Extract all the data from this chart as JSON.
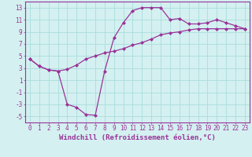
{
  "line1_x": [
    0,
    1,
    2,
    3,
    4,
    5,
    6,
    7,
    8,
    9,
    10,
    11,
    12,
    13,
    14,
    15,
    16,
    17,
    18,
    19,
    20,
    21,
    22,
    23
  ],
  "line1_y": [
    4.5,
    3.3,
    2.7,
    2.5,
    -3.0,
    -3.5,
    -4.7,
    -4.8,
    2.5,
    8.0,
    10.5,
    12.5,
    13.0,
    13.0,
    13.0,
    11.0,
    11.2,
    10.3,
    10.3,
    10.5,
    11.0,
    10.5,
    10.0,
    9.5
  ],
  "line2_x": [
    0,
    1,
    2,
    3,
    4,
    5,
    6,
    7,
    8,
    9,
    10,
    11,
    12,
    13,
    14,
    15,
    16,
    17,
    18,
    19,
    20,
    21,
    22,
    23
  ],
  "line2_y": [
    4.5,
    3.3,
    2.7,
    2.5,
    2.8,
    3.5,
    4.5,
    5.0,
    5.5,
    5.8,
    6.2,
    6.8,
    7.2,
    7.8,
    8.5,
    8.8,
    9.0,
    9.3,
    9.5,
    9.5,
    9.5,
    9.5,
    9.5,
    9.5
  ],
  "line_color": "#993399",
  "bg_color": "#d4f0f0",
  "grid_color": "#aadddd",
  "xlabel": "Windchill (Refroidissement éolien,°C)",
  "ylim": [
    -6,
    14
  ],
  "xlim": [
    -0.5,
    23.5
  ],
  "yticks": [
    13,
    11,
    9,
    7,
    5,
    3,
    1,
    -1,
    -3,
    -5
  ],
  "xticks": [
    0,
    1,
    2,
    3,
    4,
    5,
    6,
    7,
    8,
    9,
    10,
    11,
    12,
    13,
    14,
    15,
    16,
    17,
    18,
    19,
    20,
    21,
    22,
    23
  ],
  "marker": "D",
  "markersize": 2.0,
  "linewidth": 0.9,
  "xlabel_fontsize": 6.5,
  "tick_fontsize": 5.5,
  "line_color_hex": "#993399",
  "spine_color": "#993399"
}
